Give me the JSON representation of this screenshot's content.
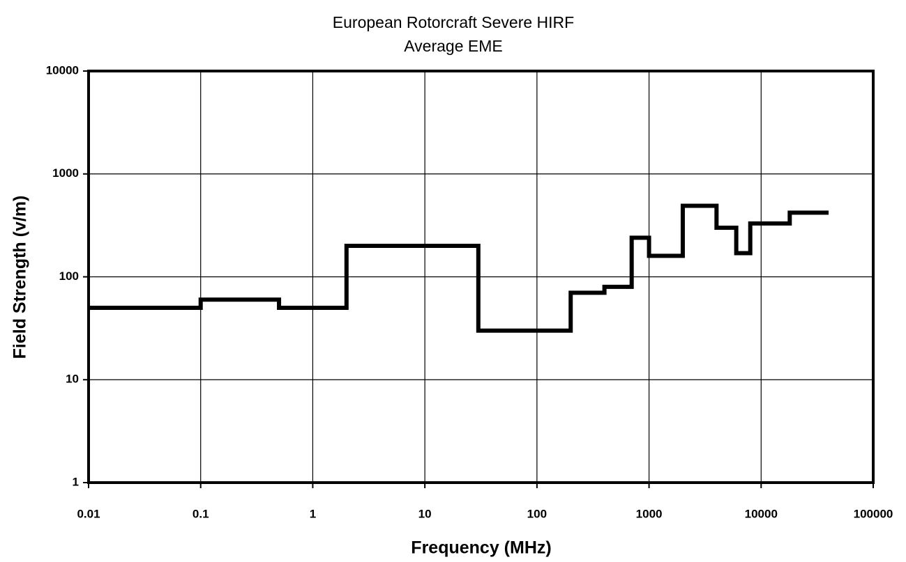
{
  "chart_data": {
    "type": "line",
    "title": "European Rotorcraft Severe HIRF",
    "subtitle": "Average EME",
    "x_label": "Frequency (MHz)",
    "y_label": "Field Strength (v/m)",
    "x": [
      0.01,
      0.1,
      0.1,
      0.5,
      0.5,
      2,
      2,
      30,
      30,
      200,
      200,
      400,
      400,
      700,
      700,
      1000,
      1000,
      2000,
      2000,
      4000,
      4000,
      6000,
      6000,
      8000,
      8000,
      18000,
      18000,
      40000
    ],
    "values": [
      50,
      50,
      60,
      60,
      50,
      50,
      200,
      200,
      30,
      30,
      70,
      70,
      80,
      80,
      240,
      240,
      160,
      160,
      490,
      490,
      300,
      300,
      170,
      170,
      330,
      330,
      420,
      420
    ],
    "color": "#000000",
    "xscale": "log",
    "yscale": "log",
    "xlim": [
      0.01,
      100000
    ],
    "xticks": [
      0.01,
      0.1,
      1,
      10,
      100,
      1000,
      10000,
      100000
    ],
    "ylim": [
      1,
      10000
    ],
    "yticks": [
      1,
      10,
      100,
      1000,
      10000
    ],
    "grid": true
  }
}
